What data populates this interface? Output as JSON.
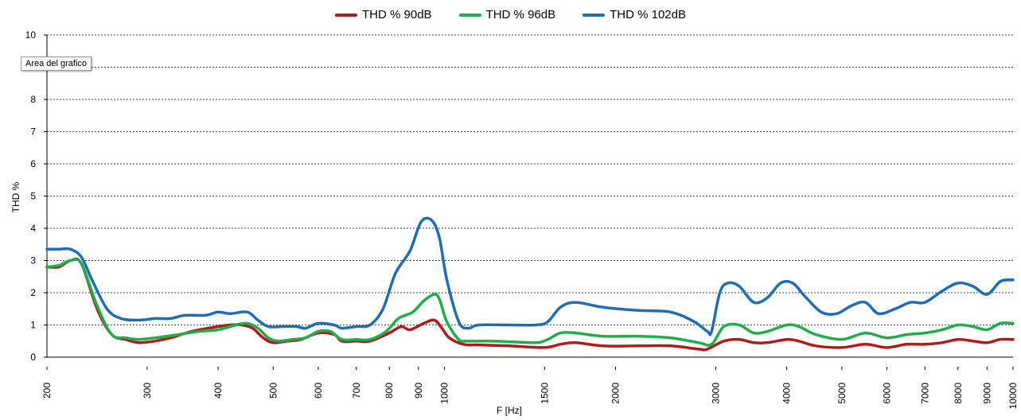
{
  "tooltip": "Area del grafico",
  "chart_data": {
    "type": "line",
    "ylabel": "THD %",
    "xlabel": "F [Hz]",
    "x_scale": "log",
    "xlim": [
      200,
      10000
    ],
    "ylim": [
      0,
      10
    ],
    "y_ticks": [
      0,
      1,
      2,
      3,
      4,
      5,
      6,
      7,
      8,
      9,
      10
    ],
    "y_tick_labels": [
      "0",
      "1",
      "2",
      "3",
      "4",
      "5",
      "6",
      "7",
      "8",
      "",
      "10"
    ],
    "x_ticks": [
      200,
      300,
      400,
      500,
      600,
      700,
      800,
      900,
      1000,
      1500,
      2000,
      3000,
      4000,
      5000,
      6000,
      7000,
      8000,
      9000,
      10000
    ],
    "x_tick_labels": [
      "200",
      "300",
      "400",
      "500",
      "600",
      "700",
      "800",
      "900",
      "1000",
      "1500",
      "2000",
      "3000",
      "4000",
      "5000",
      "6000",
      "7000",
      "8000",
      "9000",
      "10000"
    ],
    "grid": "horizontal dashed",
    "legend_position": "top-center",
    "series": [
      {
        "name": "THD % 90dB",
        "color": "#b01c1c",
        "points": [
          [
            200,
            2.8
          ],
          [
            210,
            2.8
          ],
          [
            220,
            3.0
          ],
          [
            230,
            2.9
          ],
          [
            245,
            1.5
          ],
          [
            260,
            0.7
          ],
          [
            275,
            0.55
          ],
          [
            290,
            0.45
          ],
          [
            310,
            0.5
          ],
          [
            330,
            0.6
          ],
          [
            360,
            0.8
          ],
          [
            400,
            0.95
          ],
          [
            420,
            1.0
          ],
          [
            440,
            1.0
          ],
          [
            460,
            0.9
          ],
          [
            480,
            0.6
          ],
          [
            500,
            0.45
          ],
          [
            530,
            0.5
          ],
          [
            560,
            0.55
          ],
          [
            600,
            0.75
          ],
          [
            640,
            0.7
          ],
          [
            660,
            0.5
          ],
          [
            700,
            0.5
          ],
          [
            740,
            0.5
          ],
          [
            800,
            0.75
          ],
          [
            840,
            0.95
          ],
          [
            870,
            0.85
          ],
          [
            920,
            1.05
          ],
          [
            960,
            1.15
          ],
          [
            990,
            0.9
          ],
          [
            1020,
            0.6
          ],
          [
            1080,
            0.4
          ],
          [
            1150,
            0.38
          ],
          [
            1300,
            0.35
          ],
          [
            1500,
            0.3
          ],
          [
            1600,
            0.4
          ],
          [
            1700,
            0.45
          ],
          [
            1900,
            0.35
          ],
          [
            2200,
            0.35
          ],
          [
            2500,
            0.35
          ],
          [
            2800,
            0.25
          ],
          [
            2900,
            0.25
          ],
          [
            3100,
            0.5
          ],
          [
            3300,
            0.55
          ],
          [
            3500,
            0.45
          ],
          [
            3700,
            0.45
          ],
          [
            4000,
            0.55
          ],
          [
            4200,
            0.5
          ],
          [
            4500,
            0.35
          ],
          [
            5000,
            0.3
          ],
          [
            5500,
            0.4
          ],
          [
            6000,
            0.3
          ],
          [
            6500,
            0.4
          ],
          [
            7000,
            0.4
          ],
          [
            7500,
            0.45
          ],
          [
            8000,
            0.55
          ],
          [
            8500,
            0.5
          ],
          [
            9000,
            0.45
          ],
          [
            9500,
            0.55
          ],
          [
            10000,
            0.55
          ]
        ]
      },
      {
        "name": "THD % 96dB",
        "color": "#21ad4b",
        "points": [
          [
            200,
            2.8
          ],
          [
            210,
            2.85
          ],
          [
            220,
            3.0
          ],
          [
            230,
            2.9
          ],
          [
            245,
            1.6
          ],
          [
            260,
            0.7
          ],
          [
            275,
            0.6
          ],
          [
            290,
            0.55
          ],
          [
            310,
            0.6
          ],
          [
            340,
            0.7
          ],
          [
            370,
            0.8
          ],
          [
            400,
            0.85
          ],
          [
            430,
            1.0
          ],
          [
            450,
            1.05
          ],
          [
            470,
            0.9
          ],
          [
            490,
            0.6
          ],
          [
            510,
            0.5
          ],
          [
            540,
            0.55
          ],
          [
            570,
            0.6
          ],
          [
            600,
            0.8
          ],
          [
            630,
            0.8
          ],
          [
            660,
            0.55
          ],
          [
            700,
            0.55
          ],
          [
            740,
            0.55
          ],
          [
            790,
            0.8
          ],
          [
            830,
            1.2
          ],
          [
            880,
            1.4
          ],
          [
            920,
            1.75
          ],
          [
            960,
            1.95
          ],
          [
            980,
            1.8
          ],
          [
            1010,
            1.1
          ],
          [
            1060,
            0.55
          ],
          [
            1100,
            0.5
          ],
          [
            1200,
            0.5
          ],
          [
            1300,
            0.48
          ],
          [
            1450,
            0.45
          ],
          [
            1520,
            0.55
          ],
          [
            1600,
            0.75
          ],
          [
            1700,
            0.75
          ],
          [
            1900,
            0.65
          ],
          [
            2200,
            0.65
          ],
          [
            2500,
            0.6
          ],
          [
            2800,
            0.45
          ],
          [
            2950,
            0.4
          ],
          [
            3100,
            0.95
          ],
          [
            3300,
            1.0
          ],
          [
            3500,
            0.75
          ],
          [
            3700,
            0.8
          ],
          [
            4000,
            1.0
          ],
          [
            4200,
            0.95
          ],
          [
            4500,
            0.7
          ],
          [
            5000,
            0.55
          ],
          [
            5500,
            0.75
          ],
          [
            6000,
            0.6
          ],
          [
            6500,
            0.7
          ],
          [
            7000,
            0.75
          ],
          [
            7500,
            0.85
          ],
          [
            8000,
            1.0
          ],
          [
            8500,
            0.95
          ],
          [
            9000,
            0.85
          ],
          [
            9500,
            1.05
          ],
          [
            10000,
            1.05
          ]
        ]
      },
      {
        "name": "THD % 102dB",
        "color": "#1f6db3",
        "points": [
          [
            200,
            3.35
          ],
          [
            210,
            3.35
          ],
          [
            220,
            3.35
          ],
          [
            230,
            3.1
          ],
          [
            240,
            2.4
          ],
          [
            255,
            1.5
          ],
          [
            270,
            1.2
          ],
          [
            290,
            1.15
          ],
          [
            310,
            1.2
          ],
          [
            330,
            1.2
          ],
          [
            350,
            1.3
          ],
          [
            380,
            1.3
          ],
          [
            400,
            1.4
          ],
          [
            420,
            1.35
          ],
          [
            450,
            1.4
          ],
          [
            470,
            1.15
          ],
          [
            490,
            0.95
          ],
          [
            520,
            0.95
          ],
          [
            550,
            0.95
          ],
          [
            570,
            0.9
          ],
          [
            600,
            1.05
          ],
          [
            640,
            1.0
          ],
          [
            660,
            0.9
          ],
          [
            700,
            0.95
          ],
          [
            740,
            1.0
          ],
          [
            780,
            1.5
          ],
          [
            820,
            2.6
          ],
          [
            870,
            3.3
          ],
          [
            910,
            4.2
          ],
          [
            950,
            4.25
          ],
          [
            980,
            3.7
          ],
          [
            1010,
            2.4
          ],
          [
            1060,
            1.1
          ],
          [
            1100,
            0.9
          ],
          [
            1150,
            1.0
          ],
          [
            1300,
            1.0
          ],
          [
            1450,
            1.0
          ],
          [
            1520,
            1.1
          ],
          [
            1600,
            1.55
          ],
          [
            1700,
            1.7
          ],
          [
            1900,
            1.55
          ],
          [
            2200,
            1.45
          ],
          [
            2500,
            1.4
          ],
          [
            2750,
            1.1
          ],
          [
            2900,
            0.8
          ],
          [
            2950,
            0.8
          ],
          [
            3050,
            2.0
          ],
          [
            3150,
            2.3
          ],
          [
            3300,
            2.2
          ],
          [
            3500,
            1.7
          ],
          [
            3700,
            1.85
          ],
          [
            3900,
            2.3
          ],
          [
            4100,
            2.3
          ],
          [
            4300,
            1.9
          ],
          [
            4600,
            1.4
          ],
          [
            4900,
            1.35
          ],
          [
            5200,
            1.6
          ],
          [
            5500,
            1.7
          ],
          [
            5800,
            1.35
          ],
          [
            6200,
            1.5
          ],
          [
            6600,
            1.7
          ],
          [
            7000,
            1.7
          ],
          [
            7500,
            2.05
          ],
          [
            8000,
            2.3
          ],
          [
            8500,
            2.2
          ],
          [
            9000,
            1.95
          ],
          [
            9500,
            2.35
          ],
          [
            10000,
            2.4
          ]
        ]
      }
    ]
  }
}
